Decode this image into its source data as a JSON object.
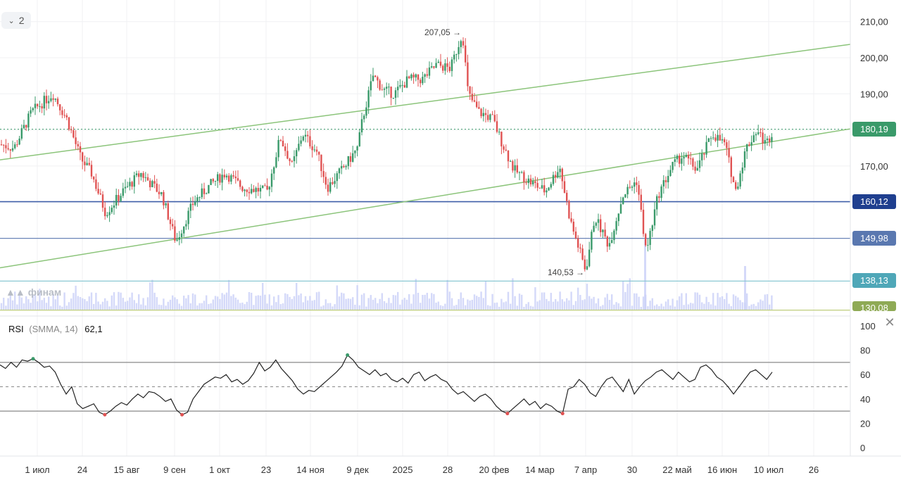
{
  "toolbar": {
    "collapse_count": "2"
  },
  "watermark": "финам",
  "colors": {
    "up": "#3a9a6a",
    "down": "#e05252",
    "trend": "#8bc47a",
    "level": "#6b84b8"
  },
  "chart_data": [
    {
      "type": "candlestick",
      "y_ticks": [
        "210,00",
        "200,00",
        "190,00",
        "180,00",
        "170,00"
      ],
      "x_ticks": [
        "1 июл",
        "24",
        "15 авг",
        "9 сен",
        "1 окт",
        "23",
        "14 ноя",
        "9 дек",
        "2025",
        "28",
        "20 фев",
        "14 мар",
        "7 апр",
        "30",
        "22 май",
        "16 июн",
        "10 июл",
        "26"
      ],
      "annotations": {
        "high": "207,05 →",
        "low": "140,53 →"
      },
      "price_labels": [
        {
          "value": "180,19",
          "color": "#3a9a6a"
        },
        {
          "value": "160,12",
          "color": "#1f3f8f"
        },
        {
          "value": "149,98",
          "color": "#5a78b0"
        },
        {
          "value": "138,13",
          "color": "#4fa7b8"
        },
        {
          "value": "130,08",
          "color": "#8faa55"
        }
      ],
      "horizontal_levels": [
        160.12,
        149.98,
        138.13,
        130.08
      ],
      "last_price": 180.19,
      "high": 207.05,
      "low": 140.53
    },
    {
      "type": "line",
      "name": "RSI",
      "params": "(SMMA, 14)",
      "last_value": "62,1",
      "y_ticks": [
        "100",
        "80",
        "60",
        "40",
        "20",
        "0"
      ],
      "levels": [
        70,
        50,
        30
      ],
      "values": [
        68,
        65,
        70,
        66,
        72,
        71,
        73,
        70,
        66,
        67,
        62,
        52,
        44,
        50,
        36,
        32,
        34,
        36,
        29,
        27,
        30,
        34,
        37,
        35,
        40,
        44,
        41,
        46,
        45,
        42,
        38,
        40,
        31,
        27,
        29,
        40,
        46,
        52,
        55,
        58,
        57,
        60,
        54,
        56,
        52,
        55,
        61,
        70,
        63,
        66,
        72,
        65,
        60,
        55,
        48,
        44,
        47,
        46,
        50,
        54,
        58,
        62,
        67,
        76,
        72,
        66,
        63,
        60,
        64,
        59,
        61,
        56,
        54,
        57,
        53,
        60,
        62,
        55,
        58,
        60,
        56,
        54,
        48,
        44,
        46,
        42,
        38,
        42,
        44,
        40,
        34,
        30,
        28,
        32,
        36,
        40,
        35,
        38,
        32,
        36,
        34,
        30,
        28,
        48,
        50,
        56,
        52,
        45,
        42,
        50,
        56,
        58,
        52,
        46,
        56,
        44,
        50,
        55,
        58,
        62,
        64,
        60,
        56,
        62,
        58,
        54,
        56,
        66,
        68,
        64,
        58,
        55,
        50,
        44,
        50,
        56,
        62,
        64,
        60,
        56,
        62
      ]
    }
  ]
}
